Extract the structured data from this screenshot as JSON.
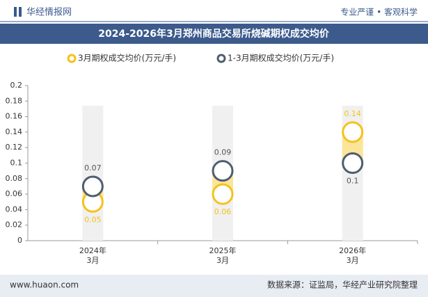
{
  "header": {
    "brand": "华经情报网",
    "slogan": "专业严谨 • 客观科学"
  },
  "footer": {
    "site": "www.huaon.com",
    "source": "数据来源：证监局，华经产业研究院整理"
  },
  "chart_data": {
    "type": "dot-range",
    "title": "2024-2026年3月郑州商品交易所烧碱期权成交均价",
    "categories": [
      "2024年\n3月",
      "2025年\n3月",
      "2026年\n3月"
    ],
    "series": [
      {
        "name": "3月期权成交均价(万元/手)",
        "color": "#f5c21b",
        "values": [
          0.05,
          0.06,
          0.14
        ]
      },
      {
        "name": "1-3月期权成交均价(万元/手)",
        "color": "#4f5d70",
        "values": [
          0.07,
          0.09,
          0.1
        ]
      }
    ],
    "ylim": [
      0,
      0.2
    ],
    "yticks": [
      0,
      0.02,
      0.04,
      0.06,
      0.08,
      0.1,
      0.12,
      0.14,
      0.16,
      0.18,
      0.2
    ]
  }
}
